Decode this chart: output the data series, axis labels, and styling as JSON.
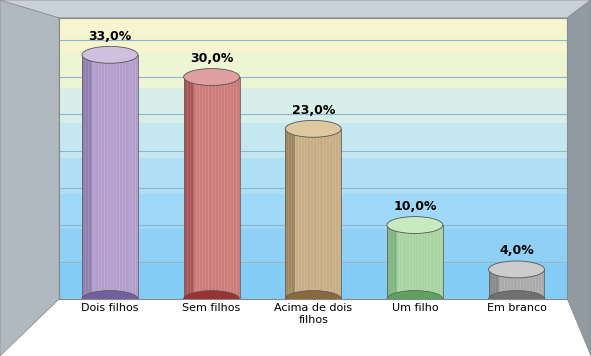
{
  "categories": [
    "Dois filhos",
    "Sem filhos",
    "Acima de dois\nfilhos",
    "Um filho",
    "Em branco"
  ],
  "values": [
    33.0,
    30.0,
    23.0,
    10.0,
    4.0
  ],
  "labels": [
    "33,0%",
    "30,0%",
    "23,0%",
    "10,0%",
    "4,0%"
  ],
  "bar_face_colors": [
    "#b39dcc",
    "#cc7b7b",
    "#c8ad85",
    "#a8d4a0",
    "#aaaaaa"
  ],
  "bar_left_colors": [
    "#9080b0",
    "#aa5555",
    "#a08860",
    "#80b480",
    "#888888"
  ],
  "bar_top_colors": [
    "#d0c0e0",
    "#e0a0a0",
    "#ddc8a0",
    "#c8eac0",
    "#cccccc"
  ],
  "bar_top_dark_colors": [
    "#7060a0",
    "#993333",
    "#8a6840",
    "#60a060",
    "#707070"
  ],
  "ylim": [
    0,
    38
  ],
  "grid_step": 5,
  "bg_bands": [
    "#f5f5d0",
    "#eef5d5",
    "#d8eee8",
    "#c5e8f0",
    "#b0dff5",
    "#9fd8f8",
    "#90d0f5",
    "#82ccf5"
  ],
  "grid_color": "#8ab8d0",
  "label_fontsize": 9,
  "tick_fontsize": 8,
  "label_fontweight": "bold",
  "bar_width": 0.55,
  "n_stripes": 18,
  "stripe_alpha": 0.18
}
